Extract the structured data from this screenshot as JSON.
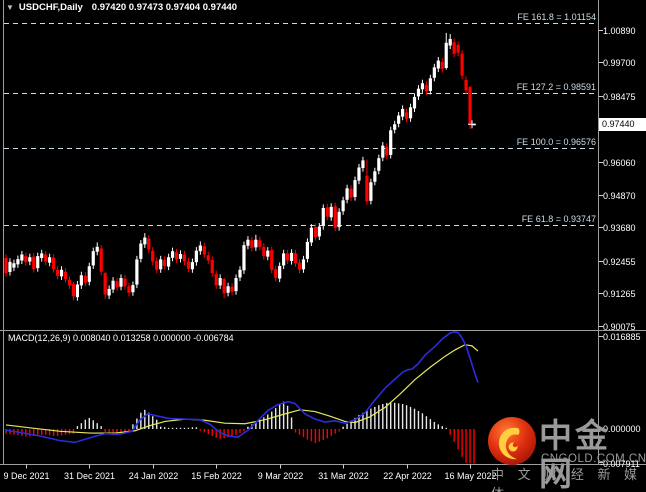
{
  "ui": {
    "title": {
      "symbol": "USDCHF,Daily",
      "quotes": "0.97420 0.97473 0.97404 0.97440"
    },
    "watermark": {
      "brand": "中金网",
      "domain": "CNGOLD.COM.CN",
      "tagline": "中 文 财 经 新 媒 体"
    }
  },
  "chart_data": {
    "type": "candlestick_with_macd",
    "symbol": "USDCHF",
    "timeframe": "Daily",
    "quote": {
      "open": "0.97420",
      "high": "0.97473",
      "low": "0.97404",
      "close": "0.97440"
    },
    "price_axis": {
      "current": "0.97440",
      "current_value": 0.9744,
      "tick_labels": [
        "1.00890",
        "0.99700",
        "0.98475",
        "0.96060",
        "0.94870",
        "0.93680",
        "0.92455",
        "0.91265",
        "0.90075"
      ],
      "tick_values": [
        1.0089,
        0.997,
        0.98475,
        0.9606,
        0.9487,
        0.9368,
        0.92455,
        0.91265,
        0.90075
      ]
    },
    "time_axis": {
      "labels": [
        "9 Dec 2021",
        "31 Dec 2021",
        "24 Jan 2022",
        "15 Feb 2022",
        "9 Mar 2022",
        "31 Mar 2022",
        "22 Apr 2022",
        "16 May 2022"
      ],
      "bar_index": [
        5,
        21,
        37,
        53,
        69,
        85,
        101,
        117
      ]
    },
    "fib_extension": [
      {
        "label": "FE 161.8 = 1.01154",
        "value": 1.01154
      },
      {
        "label": "FE 127.2 = 0.98591",
        "value": 0.98591
      },
      {
        "label": "FE 100.0 = 0.96576",
        "value": 0.96576
      },
      {
        "label": "FE 61.8 = 0.93747",
        "value": 0.93747
      }
    ],
    "bar_count": 119,
    "candles_format": "[open, close, high?, low?] — high/low optional, default = body ± 0.0013",
    "candles": [
      [
        0.9255,
        0.92
      ],
      [
        0.9204,
        0.9241
      ],
      [
        0.922,
        0.9236
      ],
      [
        0.9232,
        0.9251
      ],
      [
        0.9246,
        0.9268
      ],
      [
        0.9262,
        0.924
      ],
      [
        0.9242,
        0.9258
      ],
      [
        0.926,
        0.9215
      ],
      [
        0.9218,
        0.9262
      ],
      [
        0.9255,
        0.9272
      ],
      [
        0.9268,
        0.9242
      ],
      [
        0.9238,
        0.9258
      ],
      [
        0.9256,
        0.9215
      ],
      [
        0.9212,
        0.919
      ],
      [
        0.9188,
        0.9212
      ],
      [
        0.9205,
        0.9178
      ],
      [
        0.9175,
        0.9155
      ],
      [
        0.916,
        0.9115,
        0.9168,
        0.91
      ],
      [
        0.9112,
        0.9158
      ],
      [
        0.9155,
        0.9192
      ],
      [
        0.919,
        0.9165
      ],
      [
        0.9168,
        0.9225
      ],
      [
        0.9228,
        0.928
      ],
      [
        0.9278,
        0.9296,
        0.9312
      ],
      [
        0.929,
        0.9205
      ],
      [
        0.92,
        0.9122,
        0.9205,
        0.9106
      ],
      [
        0.9118,
        0.9142
      ],
      [
        0.914,
        0.9172
      ],
      [
        0.917,
        0.9148
      ],
      [
        0.915,
        0.9182
      ],
      [
        0.918,
        0.9152
      ],
      [
        0.9152,
        0.9128
      ],
      [
        0.913,
        0.9156
      ],
      [
        0.9158,
        0.925
      ],
      [
        0.9252,
        0.9308
      ],
      [
        0.9305,
        0.933,
        0.9346
      ],
      [
        0.9326,
        0.9286
      ],
      [
        0.9282,
        0.9242
      ],
      [
        0.9244,
        0.9212
      ],
      [
        0.9214,
        0.925
      ],
      [
        0.9248,
        0.9226
      ],
      [
        0.9224,
        0.9258
      ],
      [
        0.9256,
        0.928
      ],
      [
        0.9276,
        0.925
      ],
      [
        0.9252,
        0.927
      ],
      [
        0.9268,
        0.9242
      ],
      [
        0.9242,
        0.9216
      ],
      [
        0.9214,
        0.924
      ],
      [
        0.924,
        0.9282
      ],
      [
        0.928,
        0.9301,
        0.9316
      ],
      [
        0.9298,
        0.9268
      ],
      [
        0.9265,
        0.9246
      ],
      [
        0.9248,
        0.92
      ],
      [
        0.9196,
        0.9156
      ],
      [
        0.9155,
        0.9182
      ],
      [
        0.9178,
        0.9126,
        0.9182,
        0.9108
      ],
      [
        0.9128,
        0.9152
      ],
      [
        0.915,
        0.9132
      ],
      [
        0.9134,
        0.9182
      ],
      [
        0.9184,
        0.9212
      ],
      [
        0.921,
        0.9302
      ],
      [
        0.93,
        0.9322
      ],
      [
        0.932,
        0.9292
      ],
      [
        0.9294,
        0.9322,
        0.934
      ],
      [
        0.932,
        0.9296
      ],
      [
        0.9296,
        0.9262
      ],
      [
        0.926,
        0.9282
      ],
      [
        0.9284,
        0.9212
      ],
      [
        0.9214,
        0.9182
      ],
      [
        0.918,
        0.9226
      ],
      [
        0.9228,
        0.9272
      ],
      [
        0.9272,
        0.9246
      ],
      [
        0.9244,
        0.9274
      ],
      [
        0.9272,
        0.9236
      ],
      [
        0.9238,
        0.9212
      ],
      [
        0.9214,
        0.925
      ],
      [
        0.9252,
        0.9314
      ],
      [
        0.9312,
        0.9366
      ],
      [
        0.9368,
        0.9332
      ],
      [
        0.9334,
        0.937
      ],
      [
        0.9372,
        0.9438
      ],
      [
        0.944,
        0.9406
      ],
      [
        0.9404,
        0.9442
      ],
      [
        0.9444,
        0.9366
      ],
      [
        0.9368,
        0.9424
      ],
      [
        0.9426,
        0.9466
      ],
      [
        0.9468,
        0.951
      ],
      [
        0.9508,
        0.9476
      ],
      [
        0.9478,
        0.954
      ],
      [
        0.9538,
        0.9586
      ],
      [
        0.9584,
        0.9612
      ],
      [
        0.9556,
        0.9462,
        0.9615,
        0.945
      ],
      [
        0.9464,
        0.9532
      ],
      [
        0.9534,
        0.9572
      ],
      [
        0.9574,
        0.962
      ],
      [
        0.9622,
        0.9666
      ],
      [
        0.9662,
        0.963
      ],
      [
        0.9632,
        0.9722
      ],
      [
        0.9724,
        0.9744
      ],
      [
        0.9746,
        0.9776
      ],
      [
        0.9772,
        0.98
      ],
      [
        0.9788,
        0.9764
      ],
      [
        0.9766,
        0.9806
      ],
      [
        0.9802,
        0.9844
      ],
      [
        0.9846,
        0.9874
      ],
      [
        0.9872,
        0.9894
      ],
      [
        0.9888,
        0.9864
      ],
      [
        0.9866,
        0.9912
      ],
      [
        0.9914,
        0.9952
      ],
      [
        0.9948,
        0.9977
      ],
      [
        0.9972,
        0.9946
      ],
      [
        0.995,
        1.0042,
        1.0078,
        0.9944
      ],
      [
        1.0032,
        1.0056,
        1.0074
      ],
      [
        1.0044,
        1.0002
      ],
      [
        1.0034,
        1.0006
      ],
      [
        1.0002,
        0.9922
      ],
      [
        0.9906,
        0.9868
      ],
      [
        0.988,
        0.9744,
        0.9884,
        0.9727
      ],
      [
        0.9742,
        0.9744,
        0.97473,
        0.97404
      ]
    ],
    "macd": {
      "label": "MACD(12,26,9) 0.008040 0.013258 0.000000 -0.006784",
      "values": {
        "macd": "0.008040",
        "signal": "0.013258",
        "zero": "0.000000",
        "histogram": "-0.006784"
      },
      "scale": {
        "top": "0.016885",
        "mid": "0.000000",
        "bottom": "-0.007911"
      },
      "unit": "1e-4",
      "histogram": [
        -8,
        -9,
        -10,
        -11,
        -12,
        -13,
        -13,
        -12,
        -11,
        -10,
        -10,
        -11,
        -12,
        -12,
        -11,
        -10,
        -9,
        -8,
        5,
        10,
        16,
        19,
        15,
        10,
        5,
        -5,
        -8,
        -11,
        -10,
        -8,
        -6,
        -4,
        8,
        18,
        28,
        33,
        28,
        22,
        16,
        4,
        3,
        2,
        2,
        2,
        2,
        2,
        2,
        3,
        3,
        -3,
        -6,
        -9,
        -12,
        -15,
        -17,
        -16,
        -14,
        -12,
        -10,
        -7,
        -4,
        4,
        8,
        12,
        16,
        20,
        25,
        30,
        36,
        42,
        47,
        40,
        20,
        -6,
        -10,
        -14,
        -18,
        -21,
        -24,
        -22,
        -19,
        -16,
        -12,
        -8,
        -4,
        4,
        9,
        14,
        19,
        24,
        28,
        32,
        35,
        38,
        41,
        43,
        45,
        45,
        45,
        44,
        43,
        41,
        38,
        35,
        31,
        27,
        22,
        17,
        12,
        8,
        5,
        2,
        -10,
        -22,
        -35,
        -48,
        -58,
        -68,
        -63
      ],
      "macd_line": [
        [
          6,
          -2
        ],
        [
          20,
          -6
        ],
        [
          40,
          -12
        ],
        [
          60,
          -20
        ],
        [
          75,
          -23
        ],
        [
          90,
          -15
        ],
        [
          105,
          -8
        ],
        [
          120,
          -9
        ],
        [
          132,
          -4
        ],
        [
          140,
          16
        ],
        [
          148,
          26
        ],
        [
          158,
          22
        ],
        [
          170,
          18
        ],
        [
          185,
          17
        ],
        [
          200,
          16
        ],
        [
          210,
          8
        ],
        [
          220,
          -6
        ],
        [
          228,
          -12
        ],
        [
          238,
          -14
        ],
        [
          248,
          -2
        ],
        [
          258,
          15
        ],
        [
          268,
          32
        ],
        [
          278,
          42
        ],
        [
          288,
          47
        ],
        [
          295,
          44
        ],
        [
          305,
          26
        ],
        [
          315,
          17
        ],
        [
          325,
          12
        ],
        [
          335,
          14
        ],
        [
          345,
          10
        ],
        [
          355,
          16
        ],
        [
          365,
          28
        ],
        [
          375,
          50
        ],
        [
          385,
          70
        ],
        [
          395,
          86
        ],
        [
          403,
          98
        ],
        [
          408,
          102
        ],
        [
          412,
          103
        ],
        [
          418,
          112
        ],
        [
          425,
          127
        ],
        [
          435,
          142
        ],
        [
          443,
          156
        ],
        [
          450,
          165
        ],
        [
          454,
          169
        ],
        [
          458,
          166
        ],
        [
          462,
          157
        ],
        [
          466,
          143
        ],
        [
          470,
          122
        ],
        [
          474,
          100
        ],
        [
          478,
          80
        ]
      ],
      "signal_line": [
        [
          6,
          7
        ],
        [
          30,
          2
        ],
        [
          60,
          -4
        ],
        [
          90,
          -7
        ],
        [
          115,
          -7
        ],
        [
          135,
          -3
        ],
        [
          150,
          6
        ],
        [
          165,
          13
        ],
        [
          185,
          17
        ],
        [
          205,
          15
        ],
        [
          225,
          10
        ],
        [
          245,
          9
        ],
        [
          265,
          16
        ],
        [
          285,
          26
        ],
        [
          300,
          33
        ],
        [
          315,
          30
        ],
        [
          330,
          22
        ],
        [
          345,
          13
        ],
        [
          355,
          11
        ],
        [
          370,
          21
        ],
        [
          385,
          37
        ],
        [
          400,
          60
        ],
        [
          415,
          85
        ],
        [
          430,
          106
        ],
        [
          445,
          125
        ],
        [
          455,
          136
        ],
        [
          465,
          145
        ],
        [
          472,
          143
        ],
        [
          478,
          134
        ]
      ]
    },
    "colors": {
      "background": "#000000",
      "frame": "#9e9e9e",
      "bull": "#ffffff",
      "bear": "#ff0000",
      "fib": "#c9dcea",
      "hist_pos": "#e8e8e8",
      "hist_neg": "#ff0000",
      "macd_line": "#2b2be0",
      "signal_line": "#e8e85a",
      "watermark": "#9a9a9a",
      "logo_red": "#d6260c",
      "logo_gold": "#ffcf40"
    }
  }
}
